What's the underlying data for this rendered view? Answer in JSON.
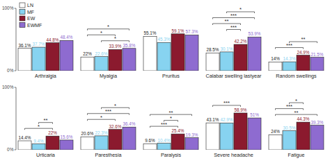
{
  "chart_data": {
    "type": "bar",
    "categories": [
      "Arthralgia",
      "Myalgia",
      "Pruritus",
      "Calabar swelling lastyear",
      "Random swellings",
      "Urticaria",
      "Paresthesia",
      "Paralysis",
      "Severe headache",
      "Fatigue"
    ],
    "series": [
      {
        "name": "LN",
        "color": "#ffffff",
        "values": [
          36.1,
          22,
          55.1,
          28.5,
          14,
          14.4,
          20.6,
          9.6,
          43.1,
          24
        ],
        "value_labels": [
          "36.1%",
          "22%",
          "55.1%",
          "28.5%",
          "14%",
          "14.4%",
          "20.6%",
          "9.6%",
          "43.1%",
          "24%"
        ]
      },
      {
        "name": "MF",
        "color": "#87d3f0",
        "values": [
          37.7,
          22.6,
          45.3,
          30.1,
          14.3,
          9.4,
          22.3,
          10.4,
          42.9,
          30.5
        ],
        "value_labels": [
          "37.7%",
          "22.6%",
          "45.3%",
          "30.1%",
          "14.3%",
          "9.4%",
          "22.3%",
          "10.4%",
          "42.9%",
          "30.5%"
        ]
      },
      {
        "name": "EW",
        "color": "#8b1a2e",
        "values": [
          44.8,
          33.9,
          59.1,
          42.2,
          24.9,
          22,
          32.6,
          25.4,
          58.9,
          44.3
        ],
        "value_labels": [
          "44.8%",
          "33.9%",
          "59.1%",
          "42.2%",
          "24.9%",
          "22%",
          "32.6%",
          "25.4%",
          "58.9%",
          "44.3%"
        ]
      },
      {
        "name": "EWMF",
        "color": "#8e6bd0",
        "values": [
          48.4,
          35.8,
          57.3,
          53.9,
          21.5,
          15.6,
          36.4,
          19.3,
          51,
          39.3
        ],
        "value_labels": [
          "48.4%",
          "35.8%",
          "57.3%",
          "53.9%",
          "21.5%",
          "15.6%",
          "36.4%",
          "19.3%",
          "51%",
          "39.3%"
        ]
      }
    ],
    "ylim": [
      0,
      100
    ],
    "yticks": [
      {
        "value": 0,
        "label": "0%"
      },
      {
        "value": 100,
        "label": "100%"
      }
    ],
    "data_labels": true,
    "legend": "top-left",
    "annotations": [
      {
        "category": 1,
        "from": 0,
        "to": 3,
        "label": "*"
      },
      {
        "category": 1,
        "from": 0,
        "to": 2,
        "label": "*"
      },
      {
        "category": 1,
        "from": 1,
        "to": 3,
        "label": "*"
      },
      {
        "category": 3,
        "from": 1,
        "to": 3,
        "label": "*"
      },
      {
        "category": 3,
        "from": 0,
        "to": 3,
        "label": "***"
      },
      {
        "category": 3,
        "from": 0,
        "to": 2,
        "label": "**"
      },
      {
        "category": 3,
        "from": 1,
        "to": 2,
        "label": "***"
      },
      {
        "category": 4,
        "from": 1,
        "to": 3,
        "label": "**"
      },
      {
        "category": 4,
        "from": 0,
        "to": 2,
        "label": "***"
      },
      {
        "category": 5,
        "from": 1,
        "to": 2,
        "label": "**"
      },
      {
        "category": 5,
        "from": 0,
        "to": 2,
        "label": "*"
      },
      {
        "category": 6,
        "from": 1,
        "to": 3,
        "label": "*"
      },
      {
        "category": 6,
        "from": 0,
        "to": 3,
        "label": "***"
      },
      {
        "category": 6,
        "from": 0,
        "to": 2,
        "label": "*"
      },
      {
        "category": 7,
        "from": 0,
        "to": 3,
        "label": "**"
      },
      {
        "category": 7,
        "from": 1,
        "to": 2,
        "label": "*"
      },
      {
        "category": 7,
        "from": 0,
        "to": 2,
        "label": "***"
      },
      {
        "category": 8,
        "from": 0,
        "to": 2,
        "label": "***"
      },
      {
        "category": 9,
        "from": 1,
        "to": 2,
        "label": "*"
      },
      {
        "category": 9,
        "from": 0,
        "to": 2,
        "label": "***"
      },
      {
        "category": 9,
        "from": 0,
        "to": 3,
        "label": "**"
      }
    ]
  }
}
